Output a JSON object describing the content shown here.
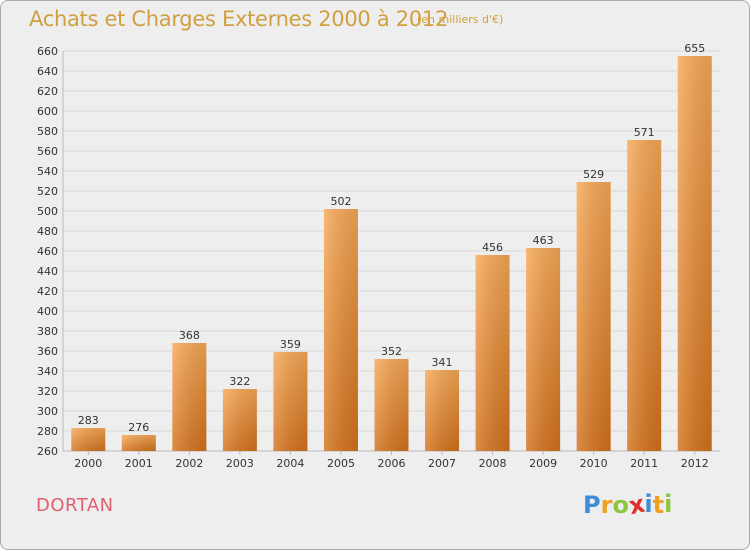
{
  "title": "Achats et Charges Externes 2000 à 2012",
  "subtitle": "(en milliers d'€)",
  "location": "DORTAN",
  "brand": {
    "letters": [
      "P",
      "r",
      "o",
      "x",
      "i",
      "t",
      "i"
    ],
    "colors": [
      "#3a8fd6",
      "#f0a020",
      "#8cc63f",
      "#e0302a",
      "#3a8fd6",
      "#f0a020",
      "#8cc63f"
    ]
  },
  "colors": {
    "bar_top": "#f7a855",
    "bar_bottom": "#d4721c",
    "grid": "#d8d8d8",
    "axis_text": "#333333"
  },
  "chart_data": {
    "type": "bar",
    "title": "Achats et Charges Externes 2000 à 2012",
    "subtitle": "(en milliers d'€)",
    "categories": [
      "2000",
      "2001",
      "2002",
      "2003",
      "2004",
      "2005",
      "2006",
      "2007",
      "2008",
      "2009",
      "2010",
      "2011",
      "2012"
    ],
    "values": [
      283,
      276,
      368,
      322,
      359,
      502,
      352,
      341,
      456,
      463,
      529,
      571,
      655
    ],
    "ylim": [
      260,
      660
    ],
    "yticks": [
      260,
      280,
      300,
      320,
      340,
      360,
      380,
      400,
      420,
      440,
      460,
      480,
      500,
      520,
      540,
      560,
      580,
      600,
      620,
      640,
      660
    ],
    "grid": true
  }
}
